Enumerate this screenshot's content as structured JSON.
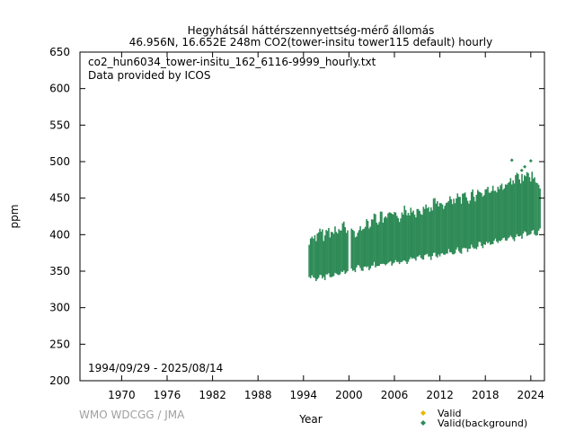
{
  "chart_data": {
    "type": "scatter",
    "title_line1": "Hegyhátsál háttérszennyettség-mérő állomás",
    "title_line2": "46.956N, 16.652E 248m    CO2(tower-insitu tower115 default) hourly",
    "annotation_file": "co2_hun6034_tower-insitu_162_6116-9999_hourly.txt",
    "annotation_provider": "Data provided by ICOS",
    "date_range": "1994/09/29 - 2025/08/14",
    "xlabel": "Year",
    "ylabel": "ppm",
    "credit": "WMO WDCGG / JMA",
    "xlim": [
      1964.5,
      2025.8
    ],
    "ylim": [
      200,
      650
    ],
    "x_ticks": [
      1970,
      1976,
      1982,
      1988,
      1994,
      2000,
      2006,
      2012,
      2018,
      2024
    ],
    "y_ticks": [
      200,
      250,
      300,
      350,
      400,
      450,
      500,
      550,
      600,
      650
    ],
    "series": [
      {
        "name": "Valid",
        "color": "#e6b800",
        "points": []
      },
      {
        "name": "Valid(background)",
        "color": "#2e8b57",
        "bands": [
          {
            "x": 1994.75,
            "low": 345,
            "high": 398
          },
          {
            "x": 1995.5,
            "low": 340,
            "high": 405
          },
          {
            "x": 1996.5,
            "low": 342,
            "high": 408
          },
          {
            "x": 1997.5,
            "low": 344,
            "high": 410
          },
          {
            "x": 1998.5,
            "low": 347,
            "high": 414
          },
          {
            "x": 1999.5,
            "low": 349,
            "high": 416
          },
          {
            "x": 2000.5,
            "low": 352,
            "high": 410
          },
          {
            "x": 2001.5,
            "low": 354,
            "high": 412
          },
          {
            "x": 2002.5,
            "low": 356,
            "high": 425
          },
          {
            "x": 2003.5,
            "low": 358,
            "high": 430
          },
          {
            "x": 2004.5,
            "low": 360,
            "high": 428
          },
          {
            "x": 2005.5,
            "low": 362,
            "high": 432
          },
          {
            "x": 2006.5,
            "low": 363,
            "high": 433
          },
          {
            "x": 2007.5,
            "low": 365,
            "high": 438
          },
          {
            "x": 2008.5,
            "low": 367,
            "high": 440
          },
          {
            "x": 2009.5,
            "low": 368,
            "high": 442
          },
          {
            "x": 2010.5,
            "low": 370,
            "high": 444
          },
          {
            "x": 2011.5,
            "low": 372,
            "high": 450
          },
          {
            "x": 2012.5,
            "low": 374,
            "high": 448
          },
          {
            "x": 2013.5,
            "low": 376,
            "high": 452
          },
          {
            "x": 2014.5,
            "low": 378,
            "high": 455
          },
          {
            "x": 2015.5,
            "low": 380,
            "high": 458
          },
          {
            "x": 2016.5,
            "low": 383,
            "high": 462
          },
          {
            "x": 2017.5,
            "low": 386,
            "high": 465
          },
          {
            "x": 2018.5,
            "low": 388,
            "high": 468
          },
          {
            "x": 2019.5,
            "low": 391,
            "high": 470
          },
          {
            "x": 2020.5,
            "low": 394,
            "high": 472
          },
          {
            "x": 2021.5,
            "low": 396,
            "high": 478
          },
          {
            "x": 2022.5,
            "low": 398,
            "high": 485
          },
          {
            "x": 2023.5,
            "low": 401,
            "high": 490
          },
          {
            "x": 2024.5,
            "low": 403,
            "high": 482
          },
          {
            "x": 2025.4,
            "low": 406,
            "high": 470
          }
        ],
        "outliers": [
          {
            "x": 2021.5,
            "y": 502
          },
          {
            "x": 2023.2,
            "y": 493
          },
          {
            "x": 2024.0,
            "y": 501
          },
          {
            "x": 2022.8,
            "y": 488
          }
        ]
      }
    ],
    "legend": [
      {
        "label": "Valid",
        "color": "#e6b800"
      },
      {
        "label": "Valid(background)",
        "color": "#2e8b57"
      }
    ]
  }
}
